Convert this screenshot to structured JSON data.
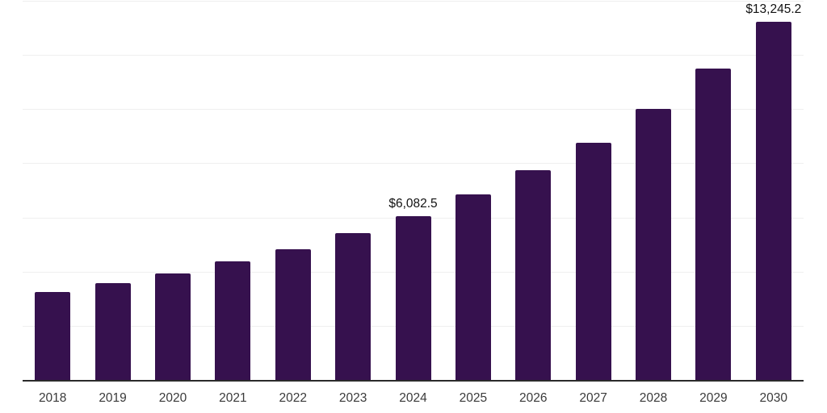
{
  "chart_data": {
    "type": "bar",
    "title": "",
    "xlabel": "",
    "ylabel": "",
    "categories": [
      "2018",
      "2019",
      "2020",
      "2021",
      "2022",
      "2023",
      "2024",
      "2025",
      "2026",
      "2027",
      "2028",
      "2029",
      "2030"
    ],
    "values": [
      3280,
      3600,
      3960,
      4400,
      4850,
      5440,
      6082.5,
      6890,
      7780,
      8800,
      10050,
      11530,
      13245.2
    ],
    "annotations": [
      {
        "category": "2024",
        "text": "$6,082.5"
      },
      {
        "category": "2030",
        "text": "$13,245.2"
      }
    ],
    "ylim": [
      0,
      14000
    ],
    "gridline_step": 2000,
    "grid": true,
    "legend": "none",
    "colors": {
      "bar": "#36114E",
      "axis_line": "#2b2b2b",
      "gridline": "#efefef",
      "tick_label": "#3a3a3a",
      "data_label": "#111111",
      "background": "#ffffff"
    }
  }
}
